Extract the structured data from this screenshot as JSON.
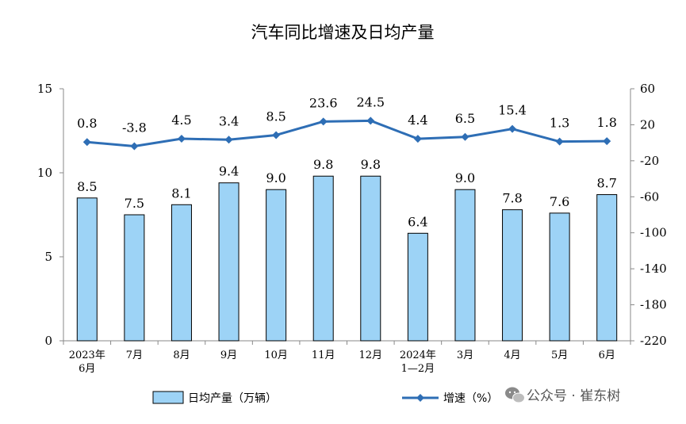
{
  "chart_data": {
    "type": "bar+line",
    "title": "汽车同比增速及日均产量",
    "categories": [
      [
        "2023年",
        "6月"
      ],
      [
        "7月"
      ],
      [
        "8月"
      ],
      [
        "9月"
      ],
      [
        "10月"
      ],
      [
        "11月"
      ],
      [
        "12月"
      ],
      [
        "2024年",
        "1—2月"
      ],
      [
        "3月"
      ],
      [
        "4月"
      ],
      [
        "5月"
      ],
      [
        "6月"
      ]
    ],
    "series": [
      {
        "name": "日均产量（万辆）",
        "type": "bar",
        "axis": "left",
        "values": [
          8.5,
          7.5,
          8.1,
          9.4,
          9.0,
          9.8,
          9.8,
          6.4,
          9.0,
          7.8,
          7.6,
          8.7
        ],
        "labels": [
          "8.5",
          "7.5",
          "8.1",
          "9.4",
          "9.0",
          "9.8",
          "9.8",
          "6.4",
          "9.0",
          "7.8",
          "7.6",
          "8.7"
        ]
      },
      {
        "name": "增速（%）",
        "type": "line",
        "axis": "right",
        "values": [
          0.8,
          -3.8,
          4.5,
          3.4,
          8.5,
          23.6,
          24.5,
          4.4,
          6.5,
          15.4,
          1.3,
          1.8
        ],
        "labels": [
          "0.8",
          "-3.8",
          "4.5",
          "3.4",
          "8.5",
          "23.6",
          "24.5",
          "4.4",
          "6.5",
          "15.4",
          "1.3",
          "1.8"
        ]
      }
    ],
    "y_left": {
      "min": 0,
      "max": 15,
      "ticks": [
        0,
        5,
        10,
        15
      ]
    },
    "y_right": {
      "min": -220,
      "max": 60,
      "ticks": [
        -220,
        -180,
        -140,
        -100,
        -60,
        -20,
        20,
        60
      ]
    },
    "colors": {
      "bar_fill": "#9dd3f6",
      "bar_edge": "#000000",
      "line": "#2e6eb5",
      "axis": "#888888"
    },
    "legend_position": "bottom",
    "grid": false
  },
  "watermark": "公众号 · 崔东树"
}
